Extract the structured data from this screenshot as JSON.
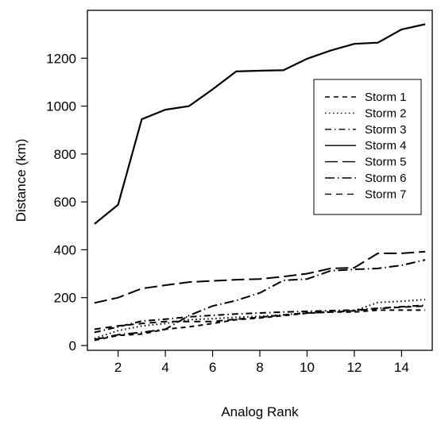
{
  "chart_data": {
    "type": "line",
    "title": "",
    "xlabel": "Analog Rank",
    "ylabel": "Distance (km)",
    "xlim": [
      0.7,
      15.3
    ],
    "ylim": [
      -20,
      1400
    ],
    "xticks": [
      2,
      4,
      6,
      8,
      10,
      12,
      14
    ],
    "yticks": [
      0,
      200,
      400,
      600,
      800,
      1000,
      1200
    ],
    "x": [
      1,
      2,
      3,
      4,
      5,
      6,
      7,
      8,
      9,
      10,
      11,
      12,
      13,
      14,
      15
    ],
    "legend_position": "top-right",
    "series": [
      {
        "name": "Storm 1",
        "dash": "6,5",
        "values": [
          22,
          42,
          48,
          68,
          78,
          92,
          108,
          115,
          125,
          135,
          140,
          140,
          148,
          148,
          148
        ]
      },
      {
        "name": "Storm 2",
        "dash": "1.5,3.5",
        "values": [
          30,
          62,
          82,
          92,
          108,
          112,
          118,
          122,
          128,
          138,
          142,
          145,
          180,
          185,
          192
        ]
      },
      {
        "name": "Storm 3",
        "dash": "8,4,1.5,4",
        "values": [
          55,
          78,
          102,
          110,
          120,
          126,
          132,
          136,
          140,
          143,
          146,
          148,
          156,
          162,
          168
        ]
      },
      {
        "name": "Storm 4",
        "dash": "",
        "values": [
          508,
          588,
          945,
          985,
          1000,
          1070,
          1145,
          1148,
          1150,
          1198,
          1232,
          1260,
          1265,
          1320,
          1342
        ]
      },
      {
        "name": "Storm 5",
        "dash": "16,6",
        "values": [
          178,
          200,
          238,
          252,
          265,
          270,
          275,
          278,
          288,
          300,
          322,
          325,
          385,
          385,
          392
        ]
      },
      {
        "name": "Storm 6",
        "dash": "12,4,1.5,4",
        "values": [
          25,
          45,
          55,
          68,
          125,
          165,
          188,
          220,
          272,
          278,
          312,
          318,
          322,
          335,
          358
        ]
      },
      {
        "name": "Storm 7",
        "dash": "8,6",
        "values": [
          68,
          82,
          92,
          100,
          100,
          100,
          110,
          118,
          128,
          136,
          140,
          145,
          155,
          160,
          165
        ]
      }
    ]
  }
}
